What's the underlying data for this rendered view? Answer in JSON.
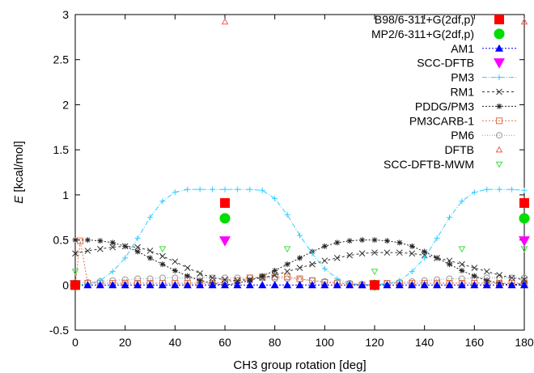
{
  "chart_data": {
    "type": "line",
    "title": "",
    "xlabel": "CH3 group rotation [deg]",
    "ylabel_italic": "E",
    "ylabel_rest": " [kcal/mol]",
    "xlim": [
      0,
      180
    ],
    "ylim": [
      -0.5,
      3
    ],
    "xticks": [
      "0",
      "20",
      "40",
      "60",
      "80",
      "100",
      "120",
      "140",
      "160",
      "180"
    ],
    "yticks": [
      "-0.5",
      "0",
      "0.5",
      "1",
      "1.5",
      "2",
      "2.5",
      "3"
    ],
    "grid": false,
    "legend_position": "top-right",
    "series": [
      {
        "name": "B98/6-311+G(2df,p)",
        "color": "#ff0000",
        "marker": "square",
        "line": false,
        "x": [
          0,
          60,
          120,
          180
        ],
        "y": [
          0,
          0.91,
          0,
          0.91
        ]
      },
      {
        "name": "MP2/6-311+G(2df,p)",
        "color": "#00dd00",
        "marker": "circle",
        "line": false,
        "x": [
          0,
          60,
          120,
          180
        ],
        "y": [
          0,
          0.74,
          0,
          0.74
        ]
      },
      {
        "name": "AM1",
        "color": "#0000ff",
        "marker": "triangle-up",
        "line": true,
        "dash": "2,2",
        "x": [
          0,
          5,
          10,
          15,
          20,
          25,
          30,
          35,
          40,
          45,
          50,
          55,
          60,
          65,
          70,
          75,
          80,
          85,
          90,
          95,
          100,
          105,
          110,
          115,
          120,
          125,
          130,
          135,
          140,
          145,
          150,
          155,
          160,
          165,
          170,
          175,
          180
        ],
        "y": [
          0,
          0,
          0,
          0,
          0,
          0,
          0,
          0,
          0,
          0,
          0,
          0,
          0,
          0,
          0,
          0,
          0,
          0,
          0,
          0,
          0,
          0,
          0,
          0,
          0,
          0,
          0,
          0,
          0,
          0,
          0,
          0,
          0,
          0,
          0,
          0,
          0
        ]
      },
      {
        "name": "SCC-DFTB",
        "color": "#ff00ff",
        "marker": "triangle-down",
        "line": false,
        "x": [
          0,
          60,
          120,
          180
        ],
        "y": [
          0,
          0.49,
          0,
          0.49
        ]
      },
      {
        "name": "PM3",
        "color": "#33ccff",
        "marker": "plus",
        "line": true,
        "dash": "6,2,1,2",
        "x": [
          0,
          5,
          10,
          15,
          20,
          25,
          30,
          35,
          40,
          45,
          50,
          55,
          60,
          65,
          70,
          75,
          80,
          85,
          90,
          95,
          100,
          105,
          110,
          115,
          120,
          125,
          130,
          135,
          140,
          145,
          150,
          155,
          160,
          165,
          170,
          175,
          180
        ],
        "y": [
          0,
          0.01,
          0.05,
          0.15,
          0.3,
          0.52,
          0.75,
          0.93,
          1.03,
          1.06,
          1.06,
          1.06,
          1.06,
          1.06,
          1.06,
          1.05,
          0.96,
          0.78,
          0.55,
          0.35,
          0.18,
          0.07,
          0.02,
          0,
          0,
          0.01,
          0.05,
          0.15,
          0.3,
          0.52,
          0.75,
          0.93,
          1.03,
          1.06,
          1.06,
          1.06,
          1.05
        ]
      },
      {
        "name": "RM1",
        "color": "#333333",
        "marker": "x",
        "line": true,
        "dash": "3,3",
        "x": [
          0,
          5,
          10,
          15,
          20,
          25,
          30,
          35,
          40,
          45,
          50,
          55,
          60,
          65,
          70,
          75,
          80,
          85,
          90,
          95,
          100,
          105,
          110,
          115,
          120,
          125,
          130,
          135,
          140,
          145,
          150,
          155,
          160,
          165,
          170,
          175,
          180
        ],
        "y": [
          0.35,
          0.38,
          0.4,
          0.42,
          0.43,
          0.42,
          0.38,
          0.32,
          0.26,
          0.19,
          0.13,
          0.08,
          0.06,
          0.05,
          0.06,
          0.08,
          0.11,
          0.15,
          0.19,
          0.23,
          0.27,
          0.3,
          0.33,
          0.35,
          0.36,
          0.36,
          0.36,
          0.35,
          0.33,
          0.3,
          0.27,
          0.23,
          0.19,
          0.15,
          0.11,
          0.08,
          0.06
        ]
      },
      {
        "name": "PDDG/PM3",
        "color": "#222222",
        "marker": "star",
        "line": true,
        "dash": "2,2",
        "x": [
          0,
          5,
          10,
          15,
          20,
          25,
          30,
          35,
          40,
          45,
          50,
          55,
          60,
          65,
          70,
          75,
          80,
          85,
          90,
          95,
          100,
          105,
          110,
          115,
          120,
          125,
          130,
          135,
          140,
          145,
          150,
          155,
          160,
          165,
          170,
          175,
          180
        ],
        "y": [
          0.5,
          0.5,
          0.49,
          0.47,
          0.43,
          0.37,
          0.3,
          0.23,
          0.16,
          0.1,
          0.05,
          0.02,
          0,
          0.02,
          0.05,
          0.1,
          0.16,
          0.23,
          0.3,
          0.37,
          0.43,
          0.47,
          0.49,
          0.5,
          0.5,
          0.49,
          0.47,
          0.43,
          0.37,
          0.3,
          0.23,
          0.16,
          0.1,
          0.05,
          0.02,
          0,
          0.02
        ]
      },
      {
        "name": "PM3CARB-1",
        "color": "#e07040",
        "marker": "open-square",
        "line": true,
        "dash": "2,2",
        "x": [
          0,
          2,
          5,
          10,
          15,
          20,
          25,
          30,
          35,
          40,
          45,
          50,
          55,
          60,
          65,
          70,
          75,
          80,
          85,
          90,
          95,
          100,
          105,
          110,
          115,
          120,
          125,
          130,
          135,
          140,
          145,
          150,
          155,
          160,
          165,
          170,
          175,
          180
        ],
        "y": [
          0,
          0.49,
          0.02,
          0.02,
          0.02,
          0.02,
          0.02,
          0.02,
          0.02,
          0.02,
          0.02,
          0.02,
          0.02,
          0.03,
          0.05,
          0.08,
          0.09,
          0.09,
          0.09,
          0.07,
          0.05,
          0.03,
          0.02,
          0.01,
          0,
          0,
          0.02,
          0.02,
          0.02,
          0.02,
          0.02,
          0.02,
          0.02,
          0.02,
          0.02,
          0.02,
          0.02,
          0.02
        ]
      },
      {
        "name": "PM6",
        "color": "#999999",
        "marker": "open-circle",
        "line": true,
        "dash": "1,2",
        "x": [
          0,
          5,
          10,
          15,
          20,
          25,
          30,
          35,
          40,
          45,
          50,
          55,
          60,
          65,
          70,
          75,
          80,
          85,
          90,
          95,
          100,
          105,
          110,
          115,
          120,
          125,
          130,
          135,
          140,
          145,
          150,
          155,
          160,
          165,
          170,
          175,
          180
        ],
        "y": [
          0.02,
          0.03,
          0.04,
          0.05,
          0.06,
          0.07,
          0.07,
          0.08,
          0.08,
          0.08,
          0.08,
          0.08,
          0.08,
          0.08,
          0.08,
          0.08,
          0.07,
          0.07,
          0.06,
          0.05,
          0.04,
          0.03,
          0.02,
          0.01,
          0,
          0.02,
          0.03,
          0.04,
          0.05,
          0.06,
          0.07,
          0.07,
          0.08,
          0.08,
          0.08,
          0.08,
          0.08
        ]
      },
      {
        "name": "DFTB",
        "color": "#ff5555",
        "marker": "open-triangle-up",
        "line": false,
        "x": [
          0,
          60,
          120,
          180
        ],
        "y": [
          0,
          2.92,
          0,
          2.92
        ]
      },
      {
        "name": "SCC-DFTB-MWM",
        "color": "#44dd44",
        "marker": "open-triangle-down",
        "line": false,
        "x": [
          0,
          35,
          85,
          120,
          155,
          180
        ],
        "y": [
          0.15,
          0.4,
          0.4,
          0.15,
          0.4,
          0.4
        ]
      }
    ]
  }
}
